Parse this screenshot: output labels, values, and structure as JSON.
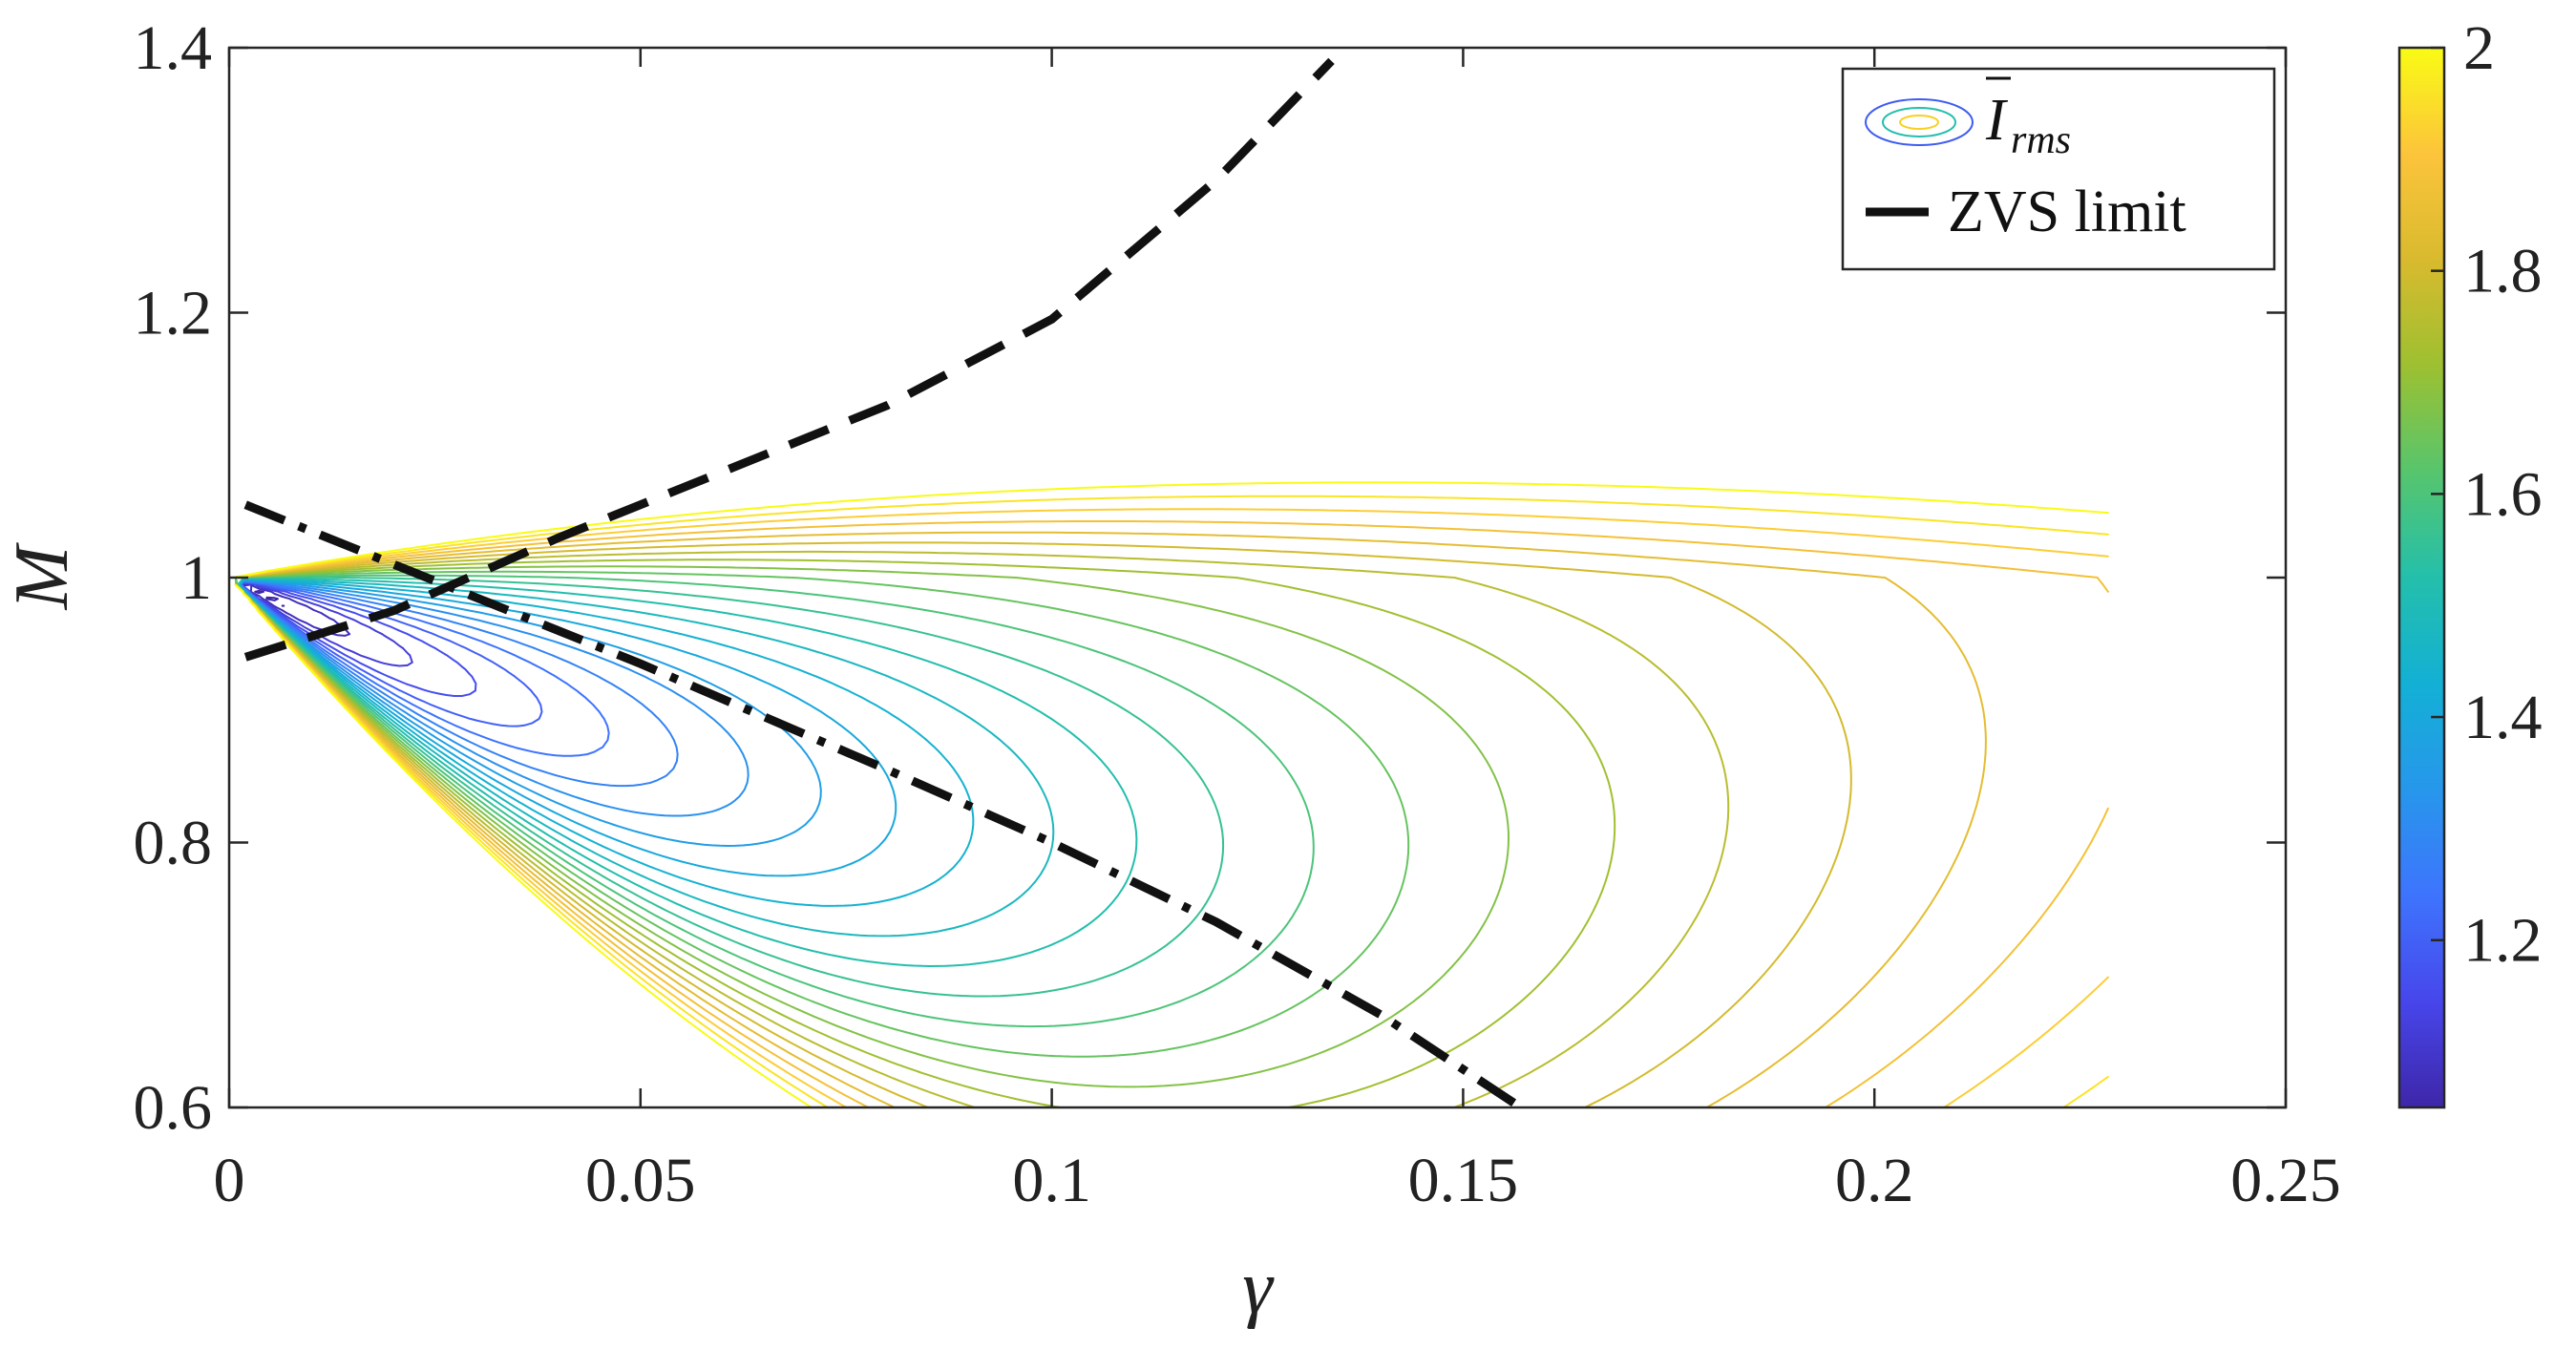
{
  "chart_data": {
    "type": "contour",
    "xlabel": "γ",
    "ylabel": "M",
    "xlim": [
      0,
      0.25
    ],
    "ylim": [
      0.6,
      1.4
    ],
    "x_ticks": [
      "0",
      "0.05",
      "0.1",
      "0.15",
      "0.2",
      "0.25"
    ],
    "y_ticks": [
      "0.6",
      "0.8",
      "1",
      "1.2",
      "1.4"
    ],
    "grid": false,
    "legend_position": "top-right",
    "legend": {
      "contour_label_main": "I",
      "contour_label_sub": "rms",
      "zvs_label": "ZVS limit"
    },
    "colorbar": {
      "range": [
        1.05,
        2.0
      ],
      "ticks": [
        "1.2",
        "1.4",
        "1.6",
        "1.8",
        "2"
      ],
      "colormap": [
        "#3e26a8",
        "#4746eb",
        "#3e74fd",
        "#2797eb",
        "#13b0d5",
        "#24bfab",
        "#57c56d",
        "#9dc031",
        "#d9ba2e",
        "#fcc43b",
        "#f9fb15"
      ]
    },
    "contour_levels": [
      1.04,
      1.08,
      1.12,
      1.16,
      1.2,
      1.24,
      1.28,
      1.32,
      1.36,
      1.4,
      1.44,
      1.48,
      1.52,
      1.56,
      1.6,
      1.64,
      1.68,
      1.72,
      1.76,
      1.8,
      1.84,
      1.88,
      1.92,
      1.96,
      2.0
    ],
    "series": [
      {
        "name": "ZVS limit",
        "style": "dashed",
        "x": [
          0.002,
          0.02,
          0.04,
          0.06,
          0.08,
          0.1,
          0.12,
          0.134
        ],
        "y": [
          0.94,
          0.975,
          1.03,
          1.08,
          1.13,
          1.195,
          1.3,
          1.39
        ]
      },
      {
        "name": "",
        "style": "dash-dot",
        "x": [
          0.002,
          0.02,
          0.05,
          0.08,
          0.1,
          0.12,
          0.14,
          0.157
        ],
        "y": [
          1.055,
          1.01,
          0.935,
          0.855,
          0.8,
          0.74,
          0.67,
          0.6
        ]
      }
    ]
  }
}
